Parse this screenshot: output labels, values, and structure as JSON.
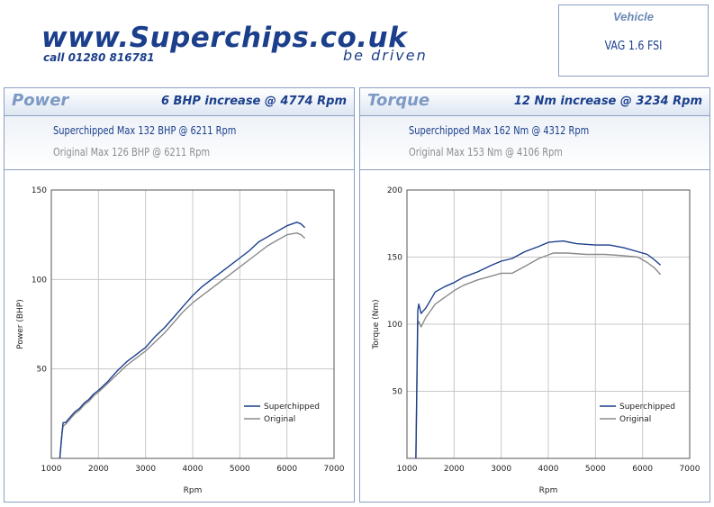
{
  "header": {
    "logo_url": "www.Superchips.co.uk",
    "logo_phone": "call 01280 816781",
    "logo_tagline": "be driven"
  },
  "vehicle": {
    "label": "Vehicle",
    "value": "VAG 1.6 FSI"
  },
  "power": {
    "title": "Power",
    "increase": "6 BHP increase @ 4774 Rpm",
    "superchipped_max": "Superchipped Max 132 BHP @ 6211 Rpm",
    "original_max": "Original Max 126 BHP @ 6211 Rpm"
  },
  "torque": {
    "title": "Torque",
    "increase": "12 Nm increase @ 3234 Rpm",
    "superchipped_max": "Superchipped Max 162 Nm @ 4312 Rpm",
    "original_max": "Original Max 153 Nm @ 4106 Rpm"
  },
  "colors": {
    "superchipped": "#1b3f8c",
    "original": "#8a8a8a",
    "grid": "#c8c8c8",
    "border": "#8aa0c4"
  },
  "chart_data": [
    {
      "type": "line",
      "xlabel": "Rpm",
      "ylabel": "Power (BHP)",
      "xlim": [
        1000,
        7000
      ],
      "ylim": [
        0,
        150
      ],
      "xticks": [
        1000,
        2000,
        3000,
        4000,
        5000,
        6000,
        7000
      ],
      "yticks": [
        50,
        100,
        150
      ],
      "grid": true,
      "legend": "bottom-right",
      "series": [
        {
          "name": "Superchipped",
          "color": "#1b3f8c",
          "x": [
            1180,
            1230,
            1250,
            1300,
            1400,
            1500,
            1600,
            1700,
            1800,
            1900,
            2000,
            2200,
            2400,
            2600,
            2800,
            3000,
            3200,
            3400,
            3600,
            3800,
            4000,
            4200,
            4400,
            4600,
            4800,
            5000,
            5200,
            5400,
            5600,
            5800,
            6000,
            6211,
            6300,
            6380
          ],
          "y": [
            0,
            15,
            20,
            20,
            23,
            26,
            28,
            31,
            33,
            36,
            38,
            43,
            49,
            54,
            58,
            62,
            68,
            73,
            79,
            85,
            91,
            96,
            100,
            104,
            108,
            112,
            116,
            121,
            124,
            127,
            130,
            132,
            131,
            129
          ]
        },
        {
          "name": "Original",
          "color": "#8a8a8a",
          "x": [
            1180,
            1230,
            1250,
            1300,
            1400,
            1500,
            1600,
            1700,
            1800,
            1900,
            2000,
            2200,
            2400,
            2600,
            2800,
            3000,
            3200,
            3400,
            3600,
            3800,
            4000,
            4200,
            4400,
            4600,
            4800,
            5000,
            5200,
            5400,
            5600,
            5800,
            6000,
            6211,
            6300,
            6380
          ],
          "y": [
            0,
            14,
            18,
            19,
            22,
            25,
            27,
            30,
            32,
            35,
            37,
            42,
            47,
            52,
            56,
            60,
            65,
            70,
            76,
            82,
            87,
            91,
            95,
            99,
            103,
            107,
            111,
            115,
            119,
            122,
            125,
            126,
            125,
            123
          ]
        }
      ]
    },
    {
      "type": "line",
      "xlabel": "Rpm",
      "ylabel": "Torque (Nm)",
      "xlim": [
        1000,
        7000
      ],
      "ylim": [
        0,
        200
      ],
      "xticks": [
        1000,
        2000,
        3000,
        4000,
        5000,
        6000,
        7000
      ],
      "yticks": [
        50,
        100,
        150,
        200
      ],
      "grid": true,
      "legend": "bottom-right",
      "series": [
        {
          "name": "Superchipped",
          "color": "#1b3f8c",
          "x": [
            1190,
            1230,
            1250,
            1300,
            1400,
            1500,
            1600,
            1800,
            2000,
            2200,
            2500,
            2800,
            3000,
            3234,
            3500,
            3800,
            4000,
            4312,
            4600,
            5000,
            5300,
            5600,
            5900,
            6100,
            6250,
            6380
          ],
          "y": [
            0,
            110,
            115,
            108,
            112,
            118,
            124,
            128,
            131,
            135,
            139,
            144,
            147,
            149,
            154,
            158,
            161,
            162,
            160,
            159,
            159,
            157,
            154,
            152,
            148,
            144
          ]
        },
        {
          "name": "Original",
          "color": "#8a8a8a",
          "x": [
            1190,
            1230,
            1250,
            1300,
            1400,
            1500,
            1600,
            1800,
            2000,
            2200,
            2500,
            2800,
            3000,
            3234,
            3500,
            3800,
            4106,
            4400,
            4800,
            5200,
            5600,
            5900,
            6100,
            6250,
            6380
          ],
          "y": [
            0,
            100,
            102,
            98,
            105,
            110,
            115,
            120,
            125,
            129,
            133,
            136,
            138,
            138,
            143,
            149,
            153,
            153,
            152,
            152,
            151,
            150,
            146,
            142,
            137
          ]
        }
      ]
    }
  ]
}
